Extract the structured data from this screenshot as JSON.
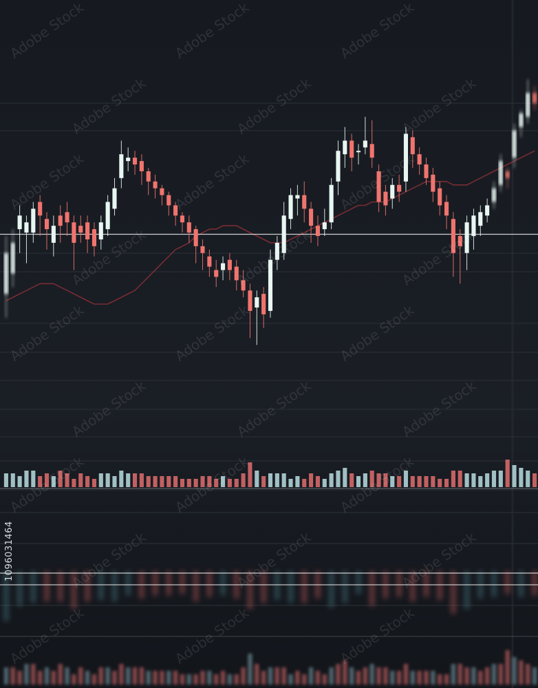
{
  "chart_data": {
    "type": "candlestick",
    "title": "",
    "xlabel": "",
    "ylabel": "",
    "grid": true,
    "legend": "none",
    "ylim": [
      0,
      100
    ],
    "colors": {
      "up": "#e8f6f2",
      "down": "#f0746e",
      "background": "#15191f",
      "ma": "#8a2f36",
      "price_line": "#f07b86"
    },
    "price_line_value": 60.5,
    "candles": [
      {
        "o": 43,
        "c": 55,
        "h": 60,
        "l": 36
      },
      {
        "o": 49,
        "c": 58,
        "h": 62,
        "l": 45
      },
      {
        "o": 62,
        "c": 66,
        "h": 69,
        "l": 55
      },
      {
        "o": 61,
        "c": 64,
        "h": 66,
        "l": 52
      },
      {
        "o": 61,
        "c": 68,
        "h": 70,
        "l": 58
      },
      {
        "o": 70,
        "c": 66,
        "h": 72,
        "l": 60
      },
      {
        "o": 65,
        "c": 62,
        "h": 67,
        "l": 56
      },
      {
        "o": 58,
        "c": 63,
        "h": 66,
        "l": 54
      },
      {
        "o": 66,
        "c": 63,
        "h": 69,
        "l": 58
      },
      {
        "o": 67,
        "c": 64,
        "h": 70,
        "l": 60
      },
      {
        "o": 64,
        "c": 58,
        "h": 66,
        "l": 50
      },
      {
        "o": 63,
        "c": 61,
        "h": 66,
        "l": 58
      },
      {
        "o": 64,
        "c": 59,
        "h": 66,
        "l": 55
      },
      {
        "o": 62,
        "c": 57,
        "h": 64,
        "l": 54
      },
      {
        "o": 59,
        "c": 64,
        "h": 66,
        "l": 56
      },
      {
        "o": 62,
        "c": 70,
        "h": 72,
        "l": 60
      },
      {
        "o": 68,
        "c": 74,
        "h": 77,
        "l": 66
      },
      {
        "o": 77,
        "c": 84,
        "h": 88,
        "l": 74
      },
      {
        "o": 82,
        "c": 83,
        "h": 86,
        "l": 79
      },
      {
        "o": 83,
        "c": 81,
        "h": 85,
        "l": 78
      },
      {
        "o": 82,
        "c": 79,
        "h": 84,
        "l": 75
      },
      {
        "o": 79,
        "c": 76,
        "h": 80,
        "l": 72
      },
      {
        "o": 76,
        "c": 74,
        "h": 78,
        "l": 71
      },
      {
        "o": 74,
        "c": 72,
        "h": 75,
        "l": 69
      },
      {
        "o": 72,
        "c": 69,
        "h": 73,
        "l": 66
      },
      {
        "o": 69,
        "c": 66,
        "h": 70,
        "l": 63
      },
      {
        "o": 66,
        "c": 64,
        "h": 67,
        "l": 61
      },
      {
        "o": 64,
        "c": 61,
        "h": 66,
        "l": 58
      },
      {
        "o": 62,
        "c": 57,
        "h": 63,
        "l": 52
      },
      {
        "o": 57,
        "c": 55,
        "h": 59,
        "l": 50
      },
      {
        "o": 54,
        "c": 51,
        "h": 56,
        "l": 48
      },
      {
        "o": 50,
        "c": 48,
        "h": 53,
        "l": 45
      },
      {
        "o": 50,
        "c": 52,
        "h": 54,
        "l": 47
      },
      {
        "o": 53,
        "c": 50,
        "h": 55,
        "l": 47
      },
      {
        "o": 51,
        "c": 47,
        "h": 53,
        "l": 44
      },
      {
        "o": 47,
        "c": 44,
        "h": 50,
        "l": 42
      },
      {
        "o": 44,
        "c": 38,
        "h": 46,
        "l": 30
      },
      {
        "o": 39,
        "c": 42,
        "h": 44,
        "l": 28
      },
      {
        "o": 43,
        "c": 37,
        "h": 45,
        "l": 33
      },
      {
        "o": 38,
        "c": 53,
        "h": 56,
        "l": 36
      },
      {
        "o": 53,
        "c": 58,
        "h": 60,
        "l": 50
      },
      {
        "o": 55,
        "c": 66,
        "h": 70,
        "l": 53
      },
      {
        "o": 65,
        "c": 72,
        "h": 74,
        "l": 62
      },
      {
        "o": 71,
        "c": 72,
        "h": 75,
        "l": 66
      },
      {
        "o": 72,
        "c": 68,
        "h": 76,
        "l": 64
      },
      {
        "o": 68,
        "c": 63,
        "h": 70,
        "l": 58
      },
      {
        "o": 63,
        "c": 60,
        "h": 66,
        "l": 57
      },
      {
        "o": 62,
        "c": 64,
        "h": 68,
        "l": 60
      },
      {
        "o": 64,
        "c": 75,
        "h": 77,
        "l": 62
      },
      {
        "o": 76,
        "c": 85,
        "h": 88,
        "l": 72
      },
      {
        "o": 84,
        "c": 88,
        "h": 92,
        "l": 80
      },
      {
        "o": 88,
        "c": 83,
        "h": 90,
        "l": 79
      },
      {
        "o": 85,
        "c": 85,
        "h": 87,
        "l": 81
      },
      {
        "o": 86,
        "c": 88,
        "h": 95,
        "l": 84
      },
      {
        "o": 87,
        "c": 83,
        "h": 94,
        "l": 80
      },
      {
        "o": 79,
        "c": 70,
        "h": 81,
        "l": 67
      },
      {
        "o": 73,
        "c": 69,
        "h": 75,
        "l": 66
      },
      {
        "o": 71,
        "c": 75,
        "h": 77,
        "l": 68
      },
      {
        "o": 75,
        "c": 73,
        "h": 78,
        "l": 70
      },
      {
        "o": 76,
        "c": 90,
        "h": 92,
        "l": 73
      },
      {
        "o": 89,
        "c": 84,
        "h": 91,
        "l": 80
      },
      {
        "o": 84,
        "c": 81,
        "h": 86,
        "l": 78
      },
      {
        "o": 81,
        "c": 77,
        "h": 83,
        "l": 75
      },
      {
        "o": 78,
        "c": 73,
        "h": 80,
        "l": 70
      },
      {
        "o": 74,
        "c": 69,
        "h": 76,
        "l": 66
      },
      {
        "o": 70,
        "c": 66,
        "h": 72,
        "l": 62
      },
      {
        "o": 65,
        "c": 55,
        "h": 67,
        "l": 48
      },
      {
        "o": 60,
        "c": 57,
        "h": 62,
        "l": 46
      },
      {
        "o": 55,
        "c": 64,
        "h": 66,
        "l": 50
      },
      {
        "o": 60,
        "c": 66,
        "h": 68,
        "l": 56
      },
      {
        "o": 63,
        "c": 67,
        "h": 69,
        "l": 60
      },
      {
        "o": 66,
        "c": 69,
        "h": 71,
        "l": 64
      },
      {
        "o": 70,
        "c": 74,
        "h": 76,
        "l": 68
      },
      {
        "o": 75,
        "c": 82,
        "h": 84,
        "l": 73
      },
      {
        "o": 79,
        "c": 77,
        "h": 80,
        "l": 74
      },
      {
        "o": 83,
        "c": 91,
        "h": 93,
        "l": 80
      },
      {
        "o": 92,
        "c": 96,
        "h": 97,
        "l": 89
      },
      {
        "o": 95,
        "c": 102,
        "h": 106,
        "l": 93
      },
      {
        "o": 102,
        "c": 99,
        "h": 104,
        "l": 97
      }
    ],
    "volume": [
      5,
      5,
      4,
      6,
      6,
      4,
      5,
      4,
      6,
      5,
      3,
      5,
      4,
      3,
      5,
      5,
      4,
      6,
      5,
      5,
      5,
      4,
      4,
      4,
      4,
      4,
      3,
      3,
      3,
      4,
      4,
      3,
      4,
      3,
      3,
      5,
      9,
      6,
      4,
      5,
      5,
      5,
      3,
      4,
      3,
      5,
      4,
      3,
      5,
      6,
      7,
      5,
      4,
      5,
      6,
      5,
      5,
      4,
      4,
      6,
      4,
      4,
      4,
      4,
      3,
      3,
      6,
      6,
      5,
      5,
      4,
      5,
      6,
      6,
      10,
      8,
      7,
      6,
      5
    ],
    "moving_average": [
      41,
      42,
      43,
      44,
      45,
      46,
      46,
      46,
      45,
      44,
      43,
      42,
      41,
      40,
      40,
      40,
      41,
      42,
      43,
      44,
      46,
      48,
      50,
      52,
      54,
      56,
      57,
      58,
      60,
      61,
      62,
      62,
      63,
      63,
      63,
      62,
      61,
      60,
      59,
      58,
      58,
      58,
      59,
      60,
      61,
      62,
      63,
      64,
      65,
      66,
      67,
      68,
      69,
      69,
      70,
      70,
      70,
      71,
      72,
      73,
      74,
      75,
      76,
      76,
      76,
      76,
      75,
      75,
      75,
      76,
      77,
      78,
      79,
      80,
      81,
      82,
      83,
      84,
      85
    ]
  },
  "sidebar_id": "1096031464",
  "watermark": "Adobe Stock"
}
